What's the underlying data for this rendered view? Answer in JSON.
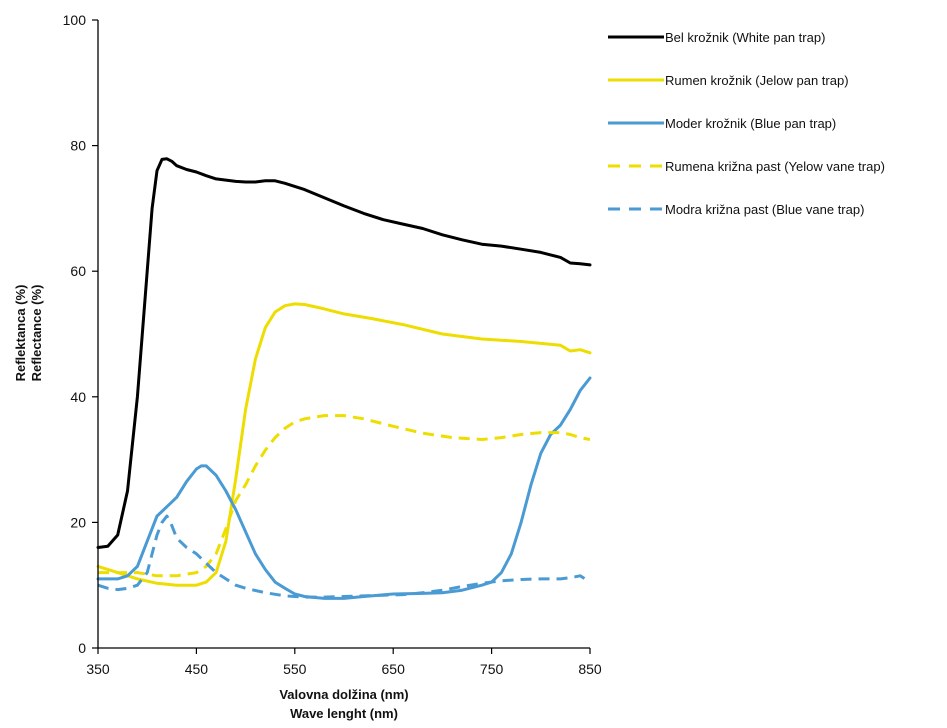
{
  "chart_data": {
    "type": "line",
    "title": "",
    "xlabel": "Valovna dolžina (nm)",
    "xlabel2": "Wave lenght (nm)",
    "ylabel": "Reflektanca (%)",
    "ylabel2": "Reflectance (%)",
    "xlim": [
      350,
      850
    ],
    "ylim": [
      0,
      100
    ],
    "xticks": [
      350,
      450,
      550,
      650,
      750,
      850
    ],
    "yticks": [
      0,
      20,
      40,
      60,
      80,
      100
    ],
    "grid": false,
    "legend_position": "right",
    "series": [
      {
        "name": "Bel krožnik (White pan trap)",
        "color": "#000000",
        "dash": "solid",
        "x": [
          350,
          360,
          370,
          380,
          390,
          400,
          405,
          410,
          415,
          420,
          425,
          430,
          440,
          450,
          460,
          470,
          480,
          490,
          500,
          510,
          520,
          530,
          540,
          560,
          580,
          600,
          620,
          640,
          660,
          680,
          700,
          720,
          740,
          760,
          780,
          800,
          810,
          820,
          830,
          840,
          850
        ],
        "y": [
          16,
          16.2,
          18,
          25,
          40,
          60,
          70,
          76,
          77.8,
          77.9,
          77.5,
          76.8,
          76.2,
          75.8,
          75.2,
          74.7,
          74.5,
          74.3,
          74.2,
          74.2,
          74.4,
          74.4,
          74,
          73,
          71.7,
          70.4,
          69.2,
          68.2,
          67.5,
          66.8,
          65.8,
          65,
          64.3,
          64,
          63.5,
          63,
          62.6,
          62.2,
          61.3,
          61.2,
          61
        ]
      },
      {
        "name": "Rumen krožnik (Jelow pan trap)",
        "color": "#eedd00",
        "dash": "solid",
        "x": [
          350,
          370,
          390,
          410,
          430,
          450,
          460,
          470,
          480,
          490,
          500,
          510,
          520,
          530,
          540,
          550,
          560,
          580,
          600,
          630,
          660,
          700,
          740,
          780,
          800,
          820,
          830,
          840,
          850
        ],
        "y": [
          13,
          12,
          11,
          10.3,
          10,
          10,
          10.5,
          12,
          17,
          27,
          38,
          46,
          51,
          53.5,
          54.5,
          54.8,
          54.7,
          54,
          53.2,
          52.4,
          51.5,
          50,
          49.2,
          48.8,
          48.5,
          48.2,
          47.3,
          47.5,
          47
        ]
      },
      {
        "name": "Moder krožnik  (Blue pan trap)",
        "color": "#4a9ad4",
        "dash": "solid",
        "x": [
          350,
          370,
          380,
          390,
          400,
          410,
          420,
          430,
          440,
          450,
          455,
          460,
          470,
          480,
          490,
          500,
          510,
          520,
          530,
          540,
          550,
          560,
          580,
          600,
          620,
          650,
          680,
          700,
          720,
          740,
          750,
          760,
          770,
          780,
          790,
          800,
          810,
          820,
          830,
          840,
          850
        ],
        "y": [
          11,
          11,
          11.5,
          13,
          17,
          21,
          22.5,
          24,
          26.5,
          28.5,
          29,
          29,
          27.5,
          25,
          22,
          18.5,
          15,
          12.5,
          10.5,
          9.5,
          8.6,
          8.2,
          7.9,
          7.9,
          8.2,
          8.6,
          8.7,
          8.8,
          9.2,
          10,
          10.5,
          12,
          15,
          20,
          26,
          31,
          34,
          35.5,
          38,
          41,
          43
        ]
      },
      {
        "name": "Rumena križna past (Yelow vane trap)",
        "color": "#eedd00",
        "dash": "dashed",
        "x": [
          350,
          370,
          390,
          410,
          430,
          450,
          460,
          470,
          480,
          490,
          500,
          510,
          520,
          530,
          540,
          550,
          560,
          580,
          600,
          620,
          650,
          680,
          710,
          740,
          760,
          780,
          800,
          820,
          830,
          840,
          850
        ],
        "y": [
          12,
          12,
          12,
          11.5,
          11.5,
          12,
          13,
          15,
          19,
          23.5,
          26,
          29,
          31.5,
          33.5,
          35,
          36,
          36.5,
          37,
          37,
          36.5,
          35.3,
          34.2,
          33.5,
          33.2,
          33.5,
          34,
          34.3,
          34.3,
          34,
          33.5,
          33.2
        ]
      },
      {
        "name": "Modra križna past (Blue vane trap)",
        "color": "#4a9ad4",
        "dash": "dashed",
        "x": [
          350,
          360,
          370,
          380,
          390,
          400,
          405,
          410,
          415,
          420,
          425,
          430,
          440,
          450,
          460,
          470,
          480,
          490,
          500,
          520,
          540,
          560,
          580,
          600,
          620,
          640,
          660,
          680,
          700,
          720,
          740,
          760,
          780,
          800,
          820,
          830,
          840,
          850
        ],
        "y": [
          10,
          9.5,
          9.3,
          9.5,
          10,
          12,
          15,
          18,
          20,
          21,
          19.5,
          17.5,
          16,
          15,
          13.5,
          12,
          11,
          10,
          9.5,
          8.8,
          8.3,
          8.1,
          8.1,
          8.2,
          8.3,
          8.4,
          8.5,
          8.8,
          9.2,
          9.8,
          10.3,
          10.7,
          10.9,
          11,
          11,
          11.2,
          11.5,
          10.5
        ]
      }
    ]
  }
}
